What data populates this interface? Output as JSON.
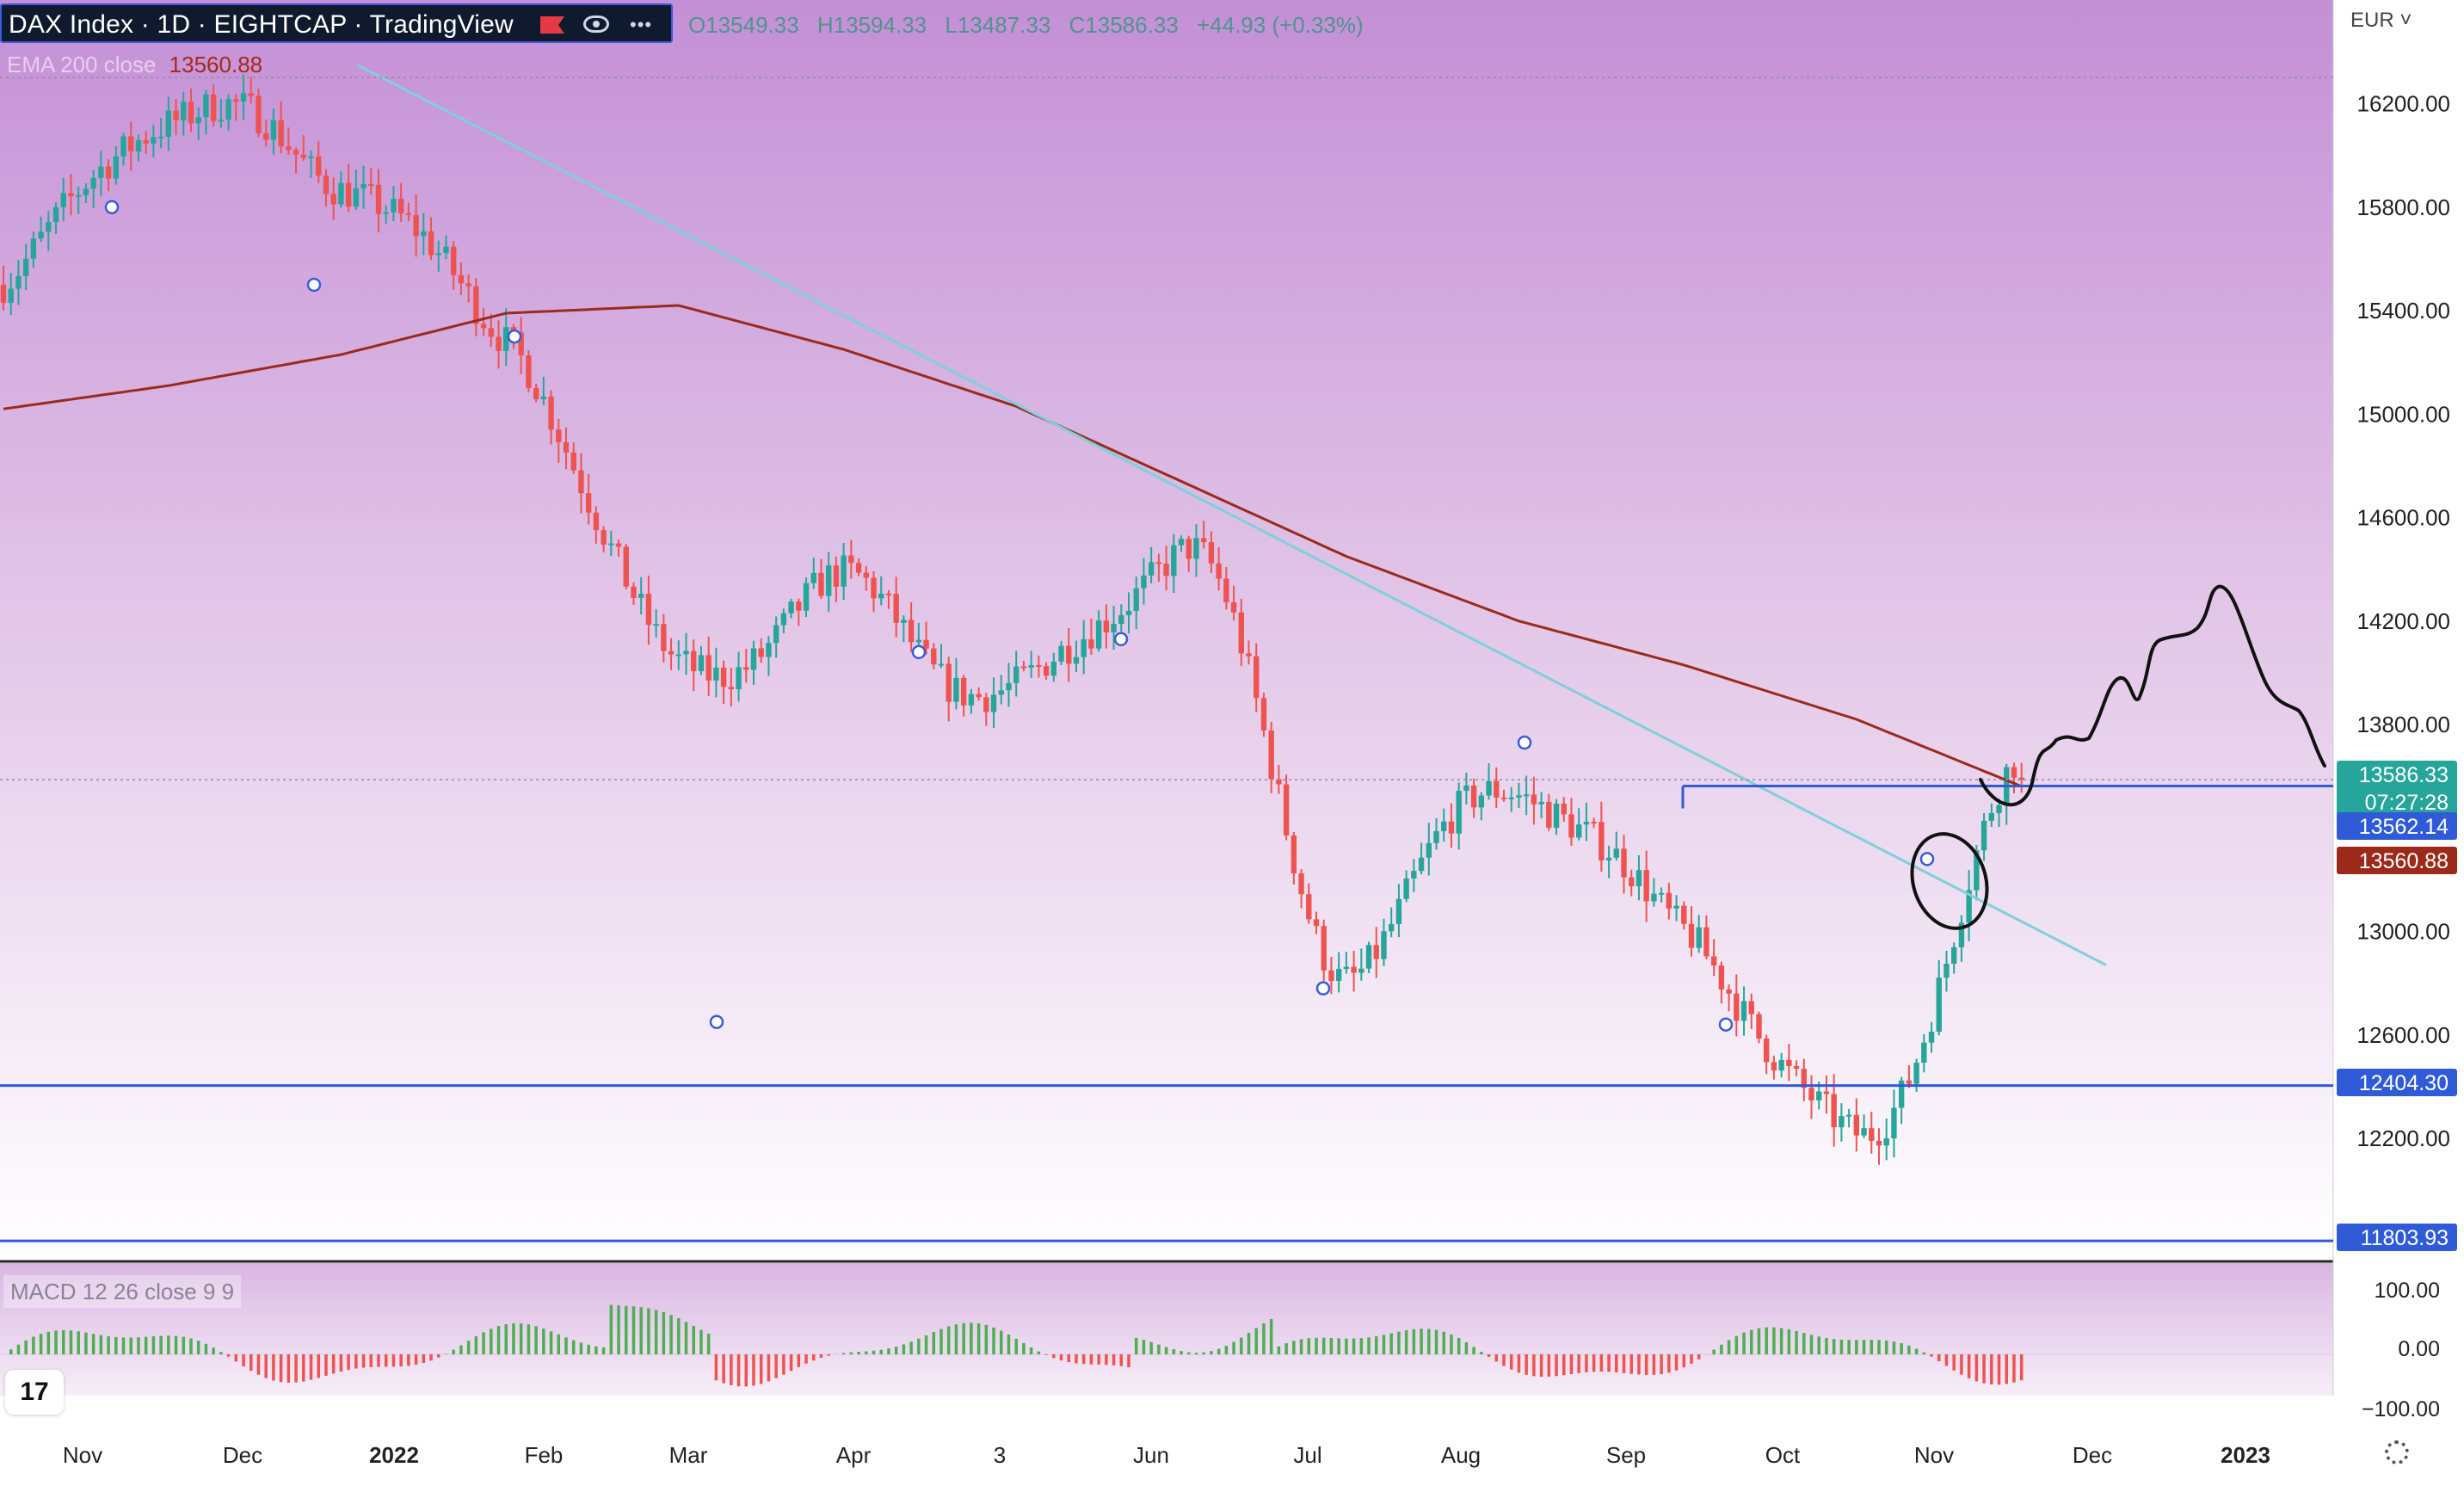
{
  "header": {
    "symbol": "DAX Index · 1D · EIGHTCAP · TradingView",
    "open": "O13549.33",
    "high": "H13594.33",
    "low": "L13487.33",
    "close": "C13586.33",
    "change": "+44.93 (+0.33%)",
    "currency": "EUR",
    "colors": {
      "up": "#26a69a",
      "down": "#ef5350",
      "panel": "#0f1a2e"
    }
  },
  "indicators": {
    "ema_name": "EMA 200 close",
    "ema_value": "13560.88",
    "ema_color": "#9b2a1a",
    "macd_name": "MACD 12 26 close 9 9"
  },
  "price_scale": {
    "ticks": [
      "16200.00",
      "15800.00",
      "15400.00",
      "15000.00",
      "14600.00",
      "14200.00",
      "13800.00",
      "13000.00",
      "12600.00",
      "12200.00"
    ],
    "tags": [
      {
        "value": 13586.33,
        "label": "13586.33",
        "sub": "07:27:28",
        "color": "#26a69a"
      },
      {
        "value": 13562.14,
        "label": "13562.14",
        "color": "#2f5bd9"
      },
      {
        "value": 13560.88,
        "label": "13560.88",
        "color": "#9b2a1a"
      },
      {
        "value": 12404.3,
        "label": "12404.30",
        "color": "#2f5bd9"
      },
      {
        "value": 11803.93,
        "label": "11803.93",
        "color": "#2f5bd9"
      }
    ]
  },
  "macd_scale": {
    "ticks": [
      "100.00",
      "0.00",
      "−100.00"
    ]
  },
  "time_axis": {
    "labels": [
      {
        "label": "Nov",
        "bold": false
      },
      {
        "label": "Dec",
        "bold": false
      },
      {
        "label": "2022",
        "bold": true
      },
      {
        "label": "Feb",
        "bold": false
      },
      {
        "label": "Mar",
        "bold": false
      },
      {
        "label": "Apr",
        "bold": false
      },
      {
        "label": "3",
        "bold": false
      },
      {
        "label": "Jun",
        "bold": false
      },
      {
        "label": "Jul",
        "bold": false
      },
      {
        "label": "Aug",
        "bold": false
      },
      {
        "label": "Sep",
        "bold": false
      },
      {
        "label": "Oct",
        "bold": false
      },
      {
        "label": "Nov",
        "bold": false
      },
      {
        "label": "Dec",
        "bold": false
      },
      {
        "label": "2023",
        "bold": true
      }
    ]
  },
  "chart_data": {
    "type": "line",
    "title": "",
    "xlabel": "",
    "ylabel": "",
    "ylim": [
      11750,
      16350
    ],
    "x": [
      "2021-11",
      "2021-12",
      "2022-01",
      "2022-02",
      "2022-03",
      "2022-04",
      "2022-05",
      "2022-06",
      "2022-07",
      "2022-08",
      "2022-09",
      "2022-10",
      "2022-11"
    ],
    "series": [
      {
        "values": [
          15500,
          16200,
          15950,
          15300,
          14000,
          14300,
          13900,
          14500,
          12900,
          13600,
          13000,
          12150,
          13586.33
        ]
      },
      {
        "values": [
          15020,
          15110,
          15230,
          15390,
          15420,
          15250,
          15030,
          14740,
          14450,
          14200,
          14030,
          13820,
          13560.88
        ]
      }
    ],
    "horizontal_levels": [
      13562.14,
      12404.3,
      11803.93
    ],
    "grid": false,
    "legend": "top-left",
    "macd": {
      "ylim": [
        -100,
        100
      ]
    }
  }
}
